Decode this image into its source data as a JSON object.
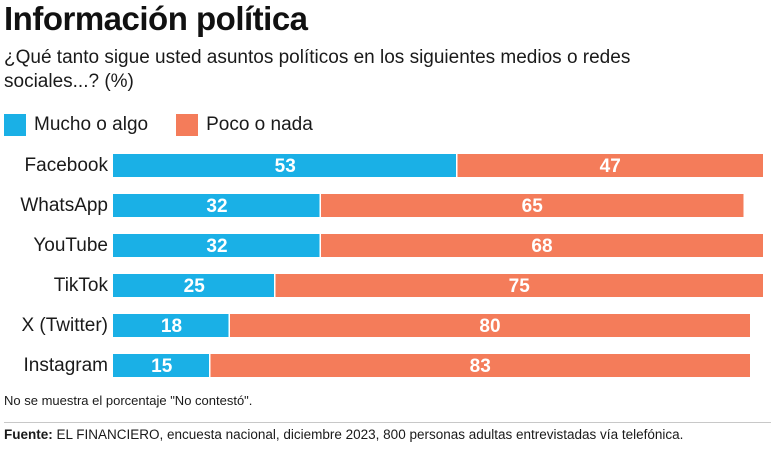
{
  "header": {
    "title": "Información política",
    "subtitle": "¿Qué tanto sigue usted asuntos políticos en los siguientes medios o redes sociales...? (%)"
  },
  "legend": [
    {
      "label": "Mucho o algo",
      "color": "#1ab0e6"
    },
    {
      "label": "Poco o nada",
      "color": "#f47c5a"
    }
  ],
  "chart_data": {
    "type": "bar",
    "orientation": "horizontal",
    "stacked": true,
    "categories": [
      "Facebook",
      "WhatsApp",
      "YouTube",
      "TikTok",
      "X (Twitter)",
      "Instagram"
    ],
    "series": [
      {
        "name": "Mucho o algo",
        "color": "#1ab0e6",
        "values": [
          53,
          32,
          32,
          25,
          18,
          15
        ]
      },
      {
        "name": "Poco o nada",
        "color": "#f47c5a",
        "values": [
          47,
          65,
          68,
          75,
          80,
          83
        ]
      }
    ],
    "xlim": [
      0,
      100
    ],
    "unit": "%",
    "legend_position": "top-left",
    "grid": false
  },
  "footer": {
    "note": "No se muestra el porcentaje \"No contestó\".",
    "source_label": "Fuente:",
    "source_text": "EL FINANCIERO, encuesta nacional, diciembre 2023, 800 personas adultas entrevistadas vía telefónica."
  }
}
